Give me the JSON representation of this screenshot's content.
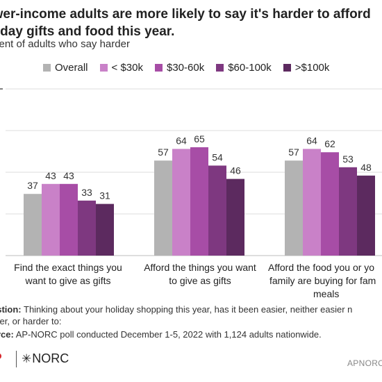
{
  "title_lines": [
    "ower-income adults are more likely to say it's harder to afford",
    "oliday gifts and food this year."
  ],
  "subtitle": "rcent of adults who say harder",
  "legend": [
    {
      "label": "Overall",
      "color": "#b3b3b3"
    },
    {
      "label": "< $30k",
      "color": "#c981c8"
    },
    {
      "label": "$30-60k",
      "color": "#a74da6"
    },
    {
      "label": "$60-100k",
      "color": "#7e3880"
    },
    {
      "label": ">$100k",
      "color": "#5c2a5f"
    }
  ],
  "chart_data": {
    "type": "bar",
    "title": "ower-income adults are more likely to say it's harder to afford oliday gifts and food this year.",
    "subtitle": "rcent of adults who say harder",
    "categories": [
      [
        "Find the exact things you",
        "want to give as gifts"
      ],
      [
        "Afford the things you want",
        "to give as gifts"
      ],
      [
        "Afford the food you or yo",
        "family are buying for fam",
        "meals"
      ]
    ],
    "series": [
      {
        "name": "Overall",
        "values": [
          37,
          57,
          57
        ]
      },
      {
        "name": "< $30k",
        "values": [
          43,
          64,
          64
        ]
      },
      {
        "name": "$30-60k",
        "values": [
          43,
          65,
          62
        ]
      },
      {
        "name": "$60-100k",
        "values": [
          33,
          54,
          53
        ]
      },
      {
        "name": ">$100k",
        "values": [
          31,
          46,
          48
        ]
      }
    ],
    "ylim": [
      0,
      100
    ],
    "grid": true,
    "data_labels": true,
    "legend_position": "top"
  },
  "notes": {
    "question_label": "estion:",
    "question_text": " Thinking about your holiday shopping this year, has it been easier, neither easier n",
    "question_cont": "rder, or harder to:",
    "source_label": "urce:",
    "source_text": " AP-NORC poll conducted December 1-5, 2022 with 1,124 adults nationwide."
  },
  "logos": {
    "ap_fragment": "P",
    "norc_text": "NORC",
    "norc_mark_icon": "asterisk-star-icon"
  },
  "credit": "APNORC"
}
